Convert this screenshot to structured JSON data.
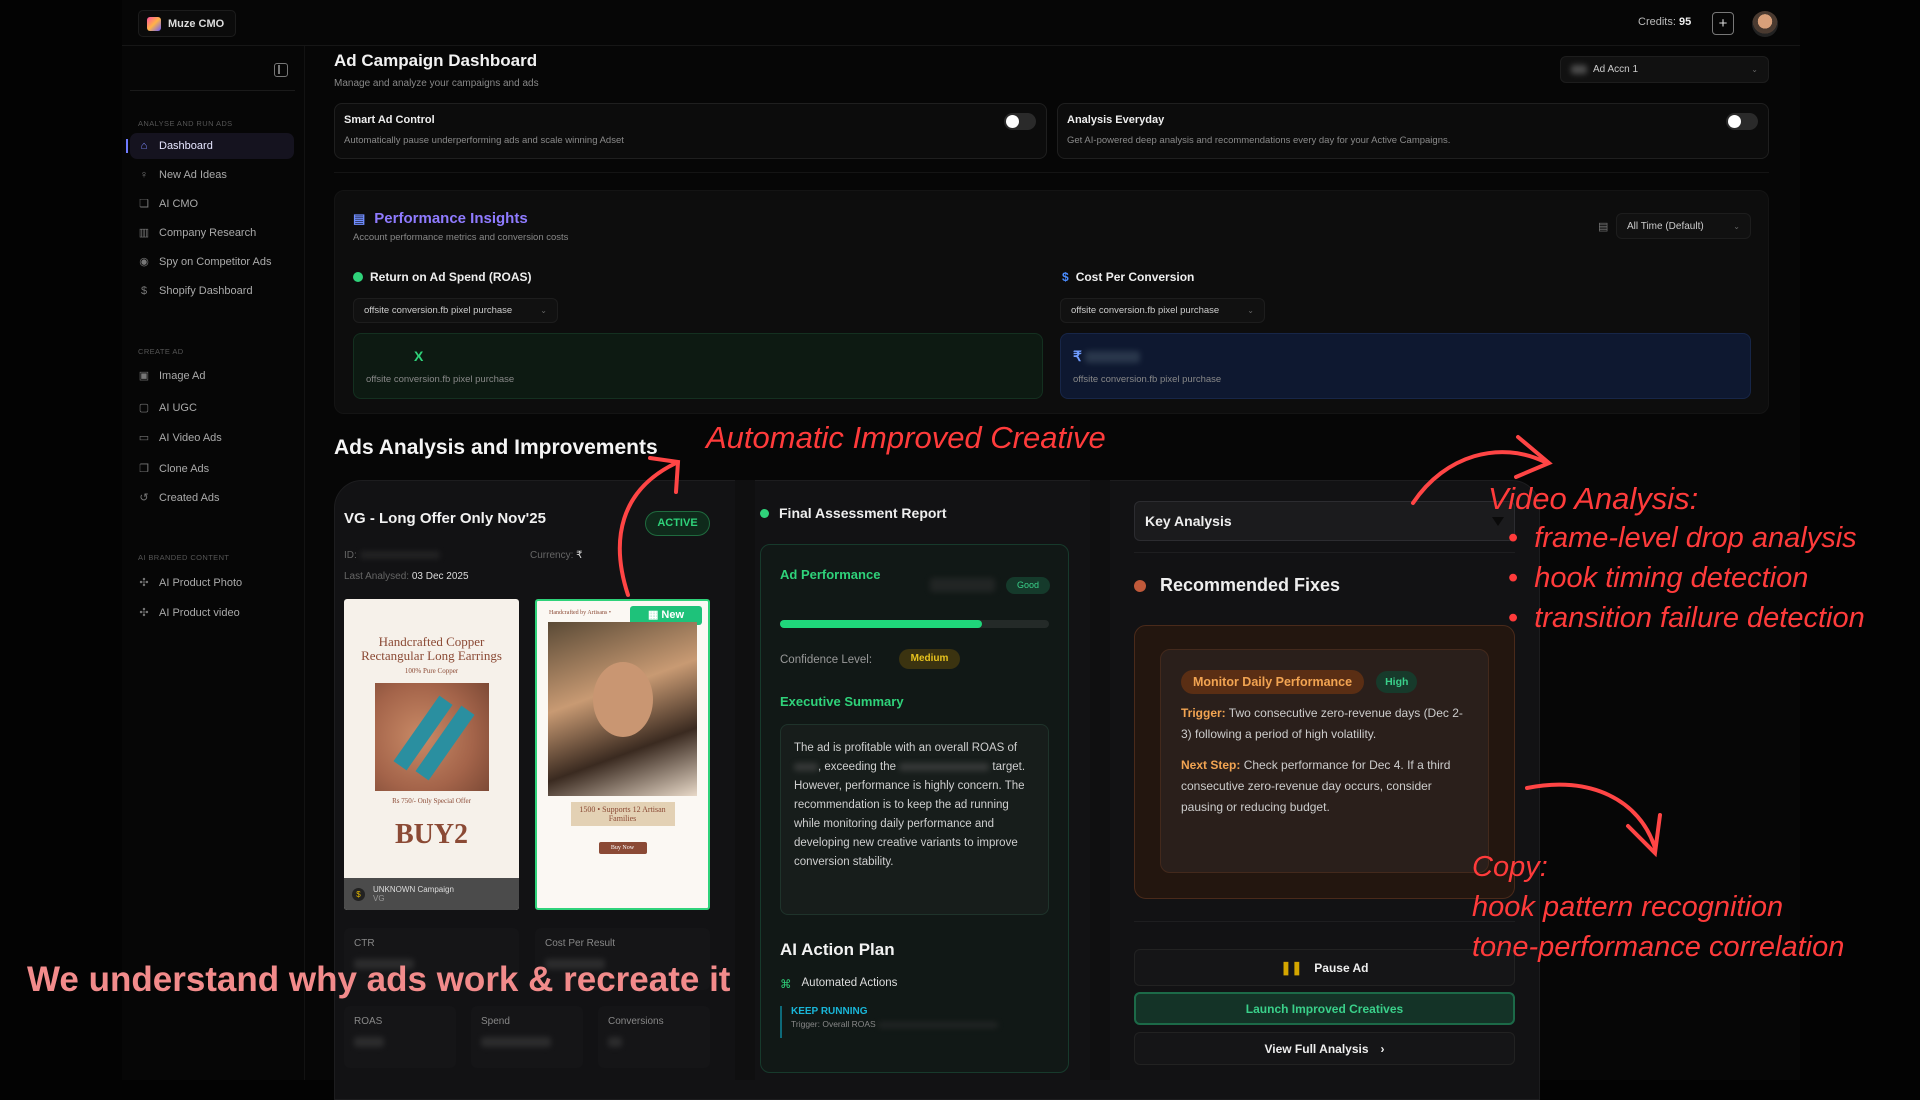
{
  "app": {
    "name": "Muze CMO"
  },
  "topbar": {
    "credits_label": "Credits:",
    "credits_value": "95",
    "add_credits_icon": "plus-icon",
    "avatar_icon": "user-avatar"
  },
  "sidebar": {
    "sections": [
      {
        "label": "ANALYSE AND RUN ADS",
        "items": [
          {
            "label": "Dashboard",
            "icon": "home-icon",
            "active": true
          },
          {
            "label": "New Ad Ideas",
            "icon": "lightbulb-icon"
          },
          {
            "label": "AI CMO",
            "icon": "chat-icon"
          },
          {
            "label": "Company Research",
            "icon": "building-icon"
          },
          {
            "label": "Spy on Competitor Ads",
            "icon": "eye-icon"
          },
          {
            "label": "Shopify Dashboard",
            "icon": "dollar-icon"
          }
        ]
      },
      {
        "label": "CREATE AD",
        "items": [
          {
            "label": "Image Ad",
            "icon": "image-icon"
          },
          {
            "label": "AI UGC",
            "icon": "portrait-icon"
          },
          {
            "label": "AI Video Ads",
            "icon": "video-icon"
          },
          {
            "label": "Clone Ads",
            "icon": "copy-icon"
          },
          {
            "label": "Created Ads",
            "icon": "history-icon"
          }
        ]
      },
      {
        "label": "AI BRANDED CONTENT",
        "items": [
          {
            "label": "AI Product Photo",
            "icon": "sparkle-icon"
          },
          {
            "label": "AI Product video",
            "icon": "sparkle-icon"
          }
        ]
      }
    ]
  },
  "header": {
    "title": "Ad Campaign Dashboard",
    "subtitle": "Manage and analyze your campaigns and ads",
    "account_select": "Ad Accn 1"
  },
  "toggles": [
    {
      "title": "Smart Ad Control",
      "desc": "Automatically pause underperforming ads and scale winning Adset",
      "on": false
    },
    {
      "title": "Analysis Everyday",
      "desc": "Get AI-powered deep analysis and recommendations every day for your Active Campaigns.",
      "on": false
    }
  ],
  "performance": {
    "title": "Performance Insights",
    "subtitle": "Account performance metrics and conversion costs",
    "range_select": "All Time (Default)",
    "roas": {
      "label": "Return on Ad Spend (ROAS)",
      "select": "offsite conversion.fb pixel purchase",
      "value_suffix": "X",
      "caption": "offsite conversion.fb pixel purchase"
    },
    "cpc": {
      "label": "Cost Per Conversion",
      "select": "offsite conversion.fb pixel purchase",
      "value_prefix": "₹",
      "caption": "offsite conversion.fb pixel purchase"
    }
  },
  "ads_section": {
    "title": "Ads Analysis and Improvements"
  },
  "ad": {
    "name": "VG - Long Offer Only Nov'25",
    "status": "ACTIVE",
    "id_label": "ID:",
    "currency_label": "Currency:",
    "currency": "₹",
    "last_analysed_label": "Last Analysed:",
    "last_analysed": "03 Dec 2025",
    "original_creative": {
      "headline": "Handcrafted Copper Rectangular Long Earrings",
      "sub": "100% Pure Copper",
      "price": "Rs 750/- Only  Special Offer",
      "cta": "BUY2",
      "campaign": "UNKNOWN Campaign",
      "campaign_sub": "VG"
    },
    "new_creative": {
      "badge": "New",
      "top": "Handcrafted by Artisans •",
      "banner": "1500 • Supports 12 Artisan Families",
      "cta": "Buy Now"
    },
    "stats": {
      "ctr": "CTR",
      "cost_per_result": "Cost Per Result",
      "roas": "ROAS",
      "spend": "Spend",
      "conversions": "Conversions"
    }
  },
  "report": {
    "title": "Final Assessment Report",
    "ad_performance": "Ad Performance",
    "rating": "Good",
    "score_percent": 75,
    "confidence_label": "Confidence Level:",
    "confidence": "Medium",
    "exec_title": "Executive Summary",
    "exec_p1": "The ad is profitable with an overall ROAS of",
    "exec_p2": ", exceeding the",
    "exec_p3": "target. However, performance is highly concern. The recommendation is to keep the ad running while monitoring daily performance and developing new creative variants to improve conversion stability.",
    "plan_title": "AI Action Plan",
    "automated": "Automated Actions",
    "action": "KEEP RUNNING",
    "action_trigger": "Trigger: Overall ROAS"
  },
  "analysis": {
    "select": "Key Analysis",
    "fixes_title": "Recommended Fixes",
    "fix": {
      "title": "Monitor Daily Performance",
      "priority": "High",
      "trigger_label": "Trigger:",
      "trigger": "Two consecutive zero-revenue days (Dec 2-3) following a period of high volatility.",
      "next_label": "Next Step:",
      "next": "Check performance for Dec 4. If a third consecutive zero-revenue day occurs, consider pausing or reducing budget."
    },
    "pause": "Pause Ad",
    "launch": "Launch Improved Creatives",
    "view": "View Full Analysis"
  },
  "annotations": {
    "auto": "Automatic Improved Creative",
    "video_title": "Video Analysis:",
    "video_points": [
      "frame-level drop analysis",
      "hook timing detection",
      "transition failure detection"
    ],
    "copy_title": "Copy:",
    "copy_points": [
      "hook pattern recognition",
      "tone-performance correlation"
    ],
    "tagline": "We understand why ads work & recreate it"
  },
  "colors": {
    "accent_green": "#2fd27a",
    "annotation_red": "#ff3b3b",
    "tagline_pink": "#f28b8b",
    "perf_title": "#8f7bff"
  }
}
